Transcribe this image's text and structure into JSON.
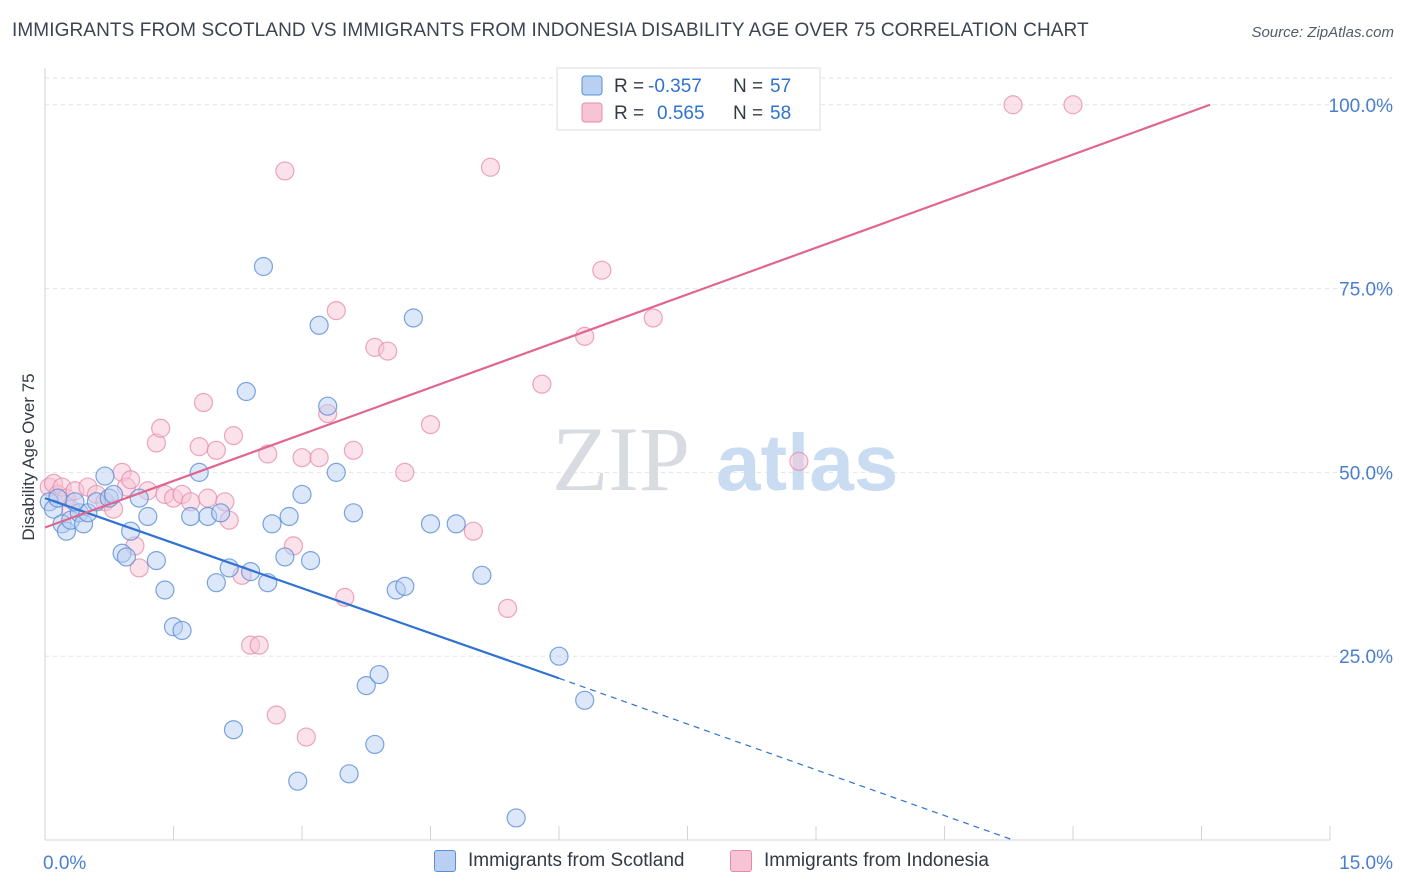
{
  "title": "IMMIGRANTS FROM SCOTLAND VS IMMIGRANTS FROM INDONESIA DISABILITY AGE OVER 75 CORRELATION CHART",
  "source": "Source: ZipAtlas.com",
  "watermark": {
    "zip": "ZIP",
    "atlas": "atlas"
  },
  "colors": {
    "scotland": "#5b8fd6",
    "scotland_fill": "#b9d0f3",
    "scotland_line": "#2f72d0",
    "indonesia": "#e58aab",
    "indonesia_fill": "#f7c4d6",
    "indonesia_line": "#e0668f",
    "axis_text": "#4a7fcf",
    "grid": "#dfe3e8"
  },
  "legend": {
    "rows": [
      {
        "r_label": "R =",
        "r_value": "-0.357",
        "n_label": "N =",
        "n_value": "57"
      },
      {
        "r_label": "R =",
        "r_value": "0.565",
        "n_label": "N =",
        "n_value": "58"
      }
    ],
    "bottom": [
      "Immigrants from Scotland",
      "Immigrants from Indonesia"
    ]
  },
  "chart_data": {
    "type": "scatter",
    "title": "IMMIGRANTS FROM SCOTLAND VS IMMIGRANTS FROM INDONESIA DISABILITY AGE OVER 75 CORRELATION CHART",
    "xlabel": "",
    "ylabel": "Disability Age Over 75",
    "xlim": [
      0,
      15
    ],
    "ylim": [
      0,
      105
    ],
    "x_tick_labels": [
      "0.0%",
      "15.0%"
    ],
    "y_ticks": [
      25,
      50,
      75,
      100
    ],
    "y_tick_labels": [
      "25.0%",
      "50.0%",
      "75.0%",
      "100.0%"
    ],
    "grid": true,
    "legend_position": "top-center",
    "series": [
      {
        "name": "Immigrants from Scotland",
        "r": -0.357,
        "n": 57,
        "trend": {
          "x0": 0,
          "y0": 46.5,
          "x1": 6,
          "y1": 22,
          "dash_to_x": 11.3,
          "dash_to_y": 0
        },
        "points": [
          [
            0.05,
            46
          ],
          [
            0.1,
            45
          ],
          [
            0.15,
            46.5
          ],
          [
            0.2,
            43
          ],
          [
            0.25,
            42
          ],
          [
            0.3,
            43.5
          ],
          [
            0.4,
            44.5
          ],
          [
            0.45,
            43
          ],
          [
            0.5,
            44.5
          ],
          [
            0.6,
            46
          ],
          [
            0.7,
            49.5
          ],
          [
            0.75,
            46.5
          ],
          [
            0.8,
            47
          ],
          [
            0.9,
            39
          ],
          [
            0.95,
            38.5
          ],
          [
            1.0,
            42
          ],
          [
            1.1,
            46.5
          ],
          [
            1.2,
            44
          ],
          [
            1.3,
            38
          ],
          [
            1.4,
            34
          ],
          [
            1.5,
            29
          ],
          [
            1.6,
            28.5
          ],
          [
            1.7,
            44
          ],
          [
            1.8,
            50
          ],
          [
            1.9,
            44
          ],
          [
            2.0,
            35
          ],
          [
            2.05,
            44.5
          ],
          [
            2.15,
            37
          ],
          [
            2.2,
            15
          ],
          [
            2.35,
            61
          ],
          [
            2.4,
            36.5
          ],
          [
            2.55,
            78
          ],
          [
            2.6,
            35
          ],
          [
            2.65,
            43
          ],
          [
            2.8,
            38.5
          ],
          [
            2.85,
            44
          ],
          [
            2.95,
            8
          ],
          [
            3.0,
            47
          ],
          [
            3.1,
            38
          ],
          [
            3.2,
            70
          ],
          [
            3.3,
            59
          ],
          [
            3.4,
            50
          ],
          [
            3.55,
            9
          ],
          [
            3.6,
            44.5
          ],
          [
            3.75,
            21
          ],
          [
            3.85,
            13
          ],
          [
            3.9,
            22.5
          ],
          [
            4.1,
            34
          ],
          [
            4.2,
            34.5
          ],
          [
            4.3,
            71
          ],
          [
            4.5,
            43
          ],
          [
            4.8,
            43
          ],
          [
            5.1,
            36
          ],
          [
            5.5,
            3
          ],
          [
            6.0,
            25
          ],
          [
            6.3,
            19
          ],
          [
            0.35,
            46
          ]
        ]
      },
      {
        "name": "Immigrants from Indonesia",
        "r": 0.565,
        "n": 58,
        "trend": {
          "x0": 0,
          "y0": 42.5,
          "x1": 13.6,
          "y1": 100
        },
        "points": [
          [
            0.05,
            48
          ],
          [
            0.1,
            48.5
          ],
          [
            0.15,
            47
          ],
          [
            0.2,
            48
          ],
          [
            0.25,
            46.5
          ],
          [
            0.3,
            45
          ],
          [
            0.35,
            47.5
          ],
          [
            0.5,
            48
          ],
          [
            0.6,
            47
          ],
          [
            0.7,
            46
          ],
          [
            0.8,
            45
          ],
          [
            0.9,
            50
          ],
          [
            0.95,
            48
          ],
          [
            1.0,
            49
          ],
          [
            1.05,
            40
          ],
          [
            1.1,
            37
          ],
          [
            1.2,
            47.5
          ],
          [
            1.3,
            54
          ],
          [
            1.35,
            56
          ],
          [
            1.4,
            47
          ],
          [
            1.5,
            46.5
          ],
          [
            1.6,
            47
          ],
          [
            1.7,
            46
          ],
          [
            1.8,
            53.5
          ],
          [
            1.85,
            59.5
          ],
          [
            1.9,
            46.5
          ],
          [
            2.0,
            53
          ],
          [
            2.1,
            46
          ],
          [
            2.15,
            43.5
          ],
          [
            2.2,
            55
          ],
          [
            2.3,
            36
          ],
          [
            2.4,
            26.5
          ],
          [
            2.5,
            26.5
          ],
          [
            2.6,
            52.5
          ],
          [
            2.7,
            17
          ],
          [
            2.8,
            91
          ],
          [
            2.9,
            40
          ],
          [
            3.0,
            52
          ],
          [
            3.05,
            14
          ],
          [
            3.2,
            52
          ],
          [
            3.3,
            58
          ],
          [
            3.4,
            72
          ],
          [
            3.5,
            33
          ],
          [
            3.6,
            53
          ],
          [
            3.85,
            67
          ],
          [
            4.0,
            66.5
          ],
          [
            4.2,
            50
          ],
          [
            4.5,
            56.5
          ],
          [
            5.0,
            42
          ],
          [
            5.2,
            91.5
          ],
          [
            5.4,
            31.5
          ],
          [
            5.8,
            62
          ],
          [
            6.3,
            68.5
          ],
          [
            6.5,
            77.5
          ],
          [
            7.1,
            71
          ],
          [
            8.8,
            51.5
          ],
          [
            11.3,
            100
          ],
          [
            12.0,
            100
          ]
        ]
      }
    ]
  }
}
